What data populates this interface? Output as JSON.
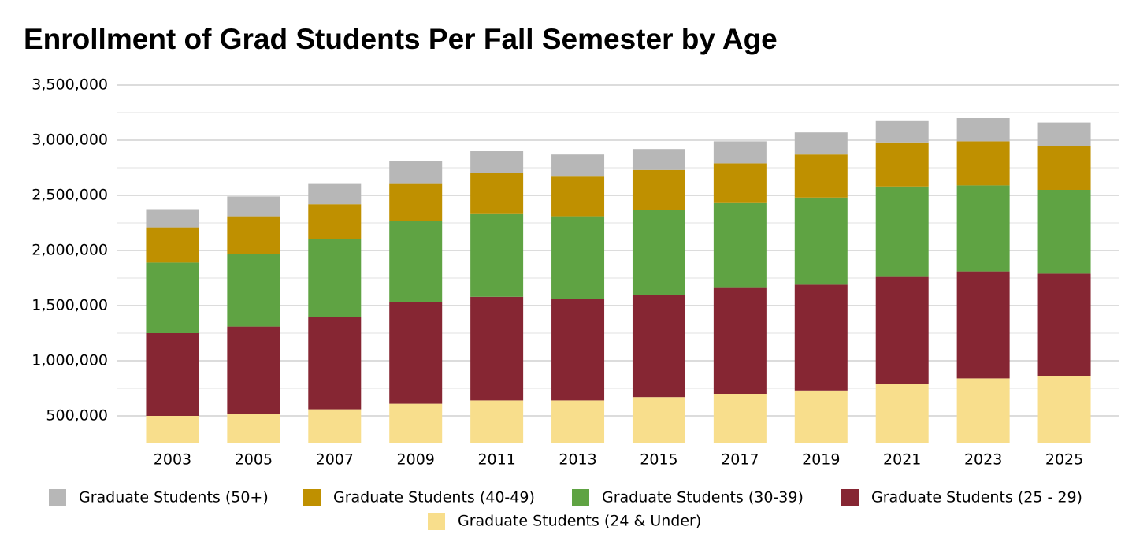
{
  "chart_data": {
    "type": "stacked_bar",
    "title": "Enrollment of Grad Students Per Fall Semester by Age",
    "categories": [
      "2003",
      "2005",
      "2007",
      "2009",
      "2011",
      "2013",
      "2015",
      "2017",
      "2019",
      "2021",
      "2023",
      "2025"
    ],
    "series": [
      {
        "name": "Graduate Students (50+)",
        "color": "#b7b7b7",
        "values": [
          165000,
          180000,
          190000,
          200000,
          200000,
          200000,
          190000,
          200000,
          200000,
          200000,
          210000,
          210000
        ]
      },
      {
        "name": "Graduate Students (40-49)",
        "color": "#bf9000",
        "values": [
          320000,
          340000,
          320000,
          340000,
          370000,
          360000,
          360000,
          360000,
          390000,
          400000,
          400000,
          400000
        ]
      },
      {
        "name": "Graduate Students (30-39)",
        "color": "#5fa343",
        "values": [
          640000,
          660000,
          700000,
          740000,
          750000,
          750000,
          770000,
          770000,
          790000,
          820000,
          780000,
          760000
        ]
      },
      {
        "name": "Graduate Students (25 - 29)",
        "color": "#862633",
        "values": [
          750000,
          790000,
          840000,
          920000,
          940000,
          920000,
          930000,
          960000,
          960000,
          970000,
          970000,
          930000
        ]
      },
      {
        "name": "Graduate Students (24 & Under)",
        "color": "#f8de8c",
        "values": [
          500000,
          520000,
          560000,
          610000,
          640000,
          640000,
          670000,
          700000,
          730000,
          790000,
          840000,
          860000
        ]
      }
    ],
    "ylim": [
      250000,
      3500000
    ],
    "yticks": [
      {
        "value": 500000,
        "label": "500,000"
      },
      {
        "value": 1000000,
        "label": "1,000,000"
      },
      {
        "value": 1500000,
        "label": "1,500,000"
      },
      {
        "value": 2000000,
        "label": "2,000,000"
      },
      {
        "value": 2500000,
        "label": "2,500,000"
      },
      {
        "value": 3000000,
        "label": "3,000,000"
      },
      {
        "value": 3500000,
        "label": "3,500,000"
      }
    ],
    "grid": true,
    "minor_grid": true,
    "legend": "bottom"
  }
}
